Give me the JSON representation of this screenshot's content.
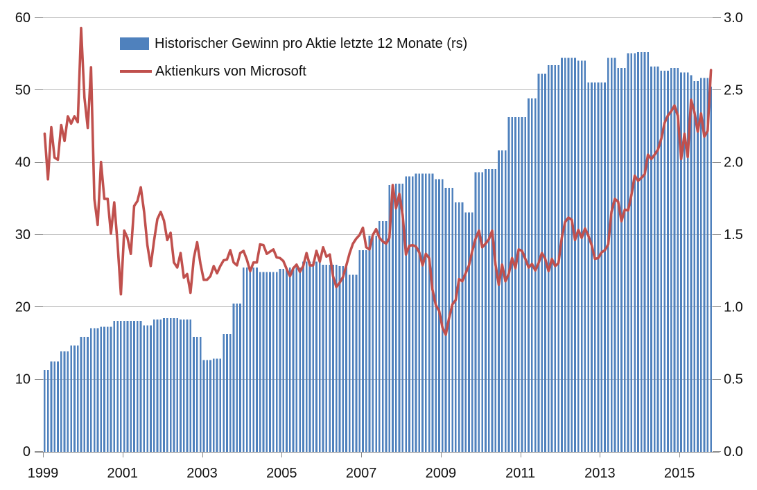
{
  "chart_data": {
    "type": "bar+line combo",
    "title": "",
    "frequency": "monthly",
    "start_month": "1999-01",
    "end_month": "2015-10",
    "x_ticks": {
      "labels": [
        "1999",
        "2001",
        "2003",
        "2005",
        "2007",
        "2009",
        "2011",
        "2013",
        "2015"
      ],
      "month_indices": [
        0,
        24,
        48,
        72,
        96,
        120,
        144,
        168,
        192
      ]
    },
    "left_axis": {
      "ticks": [
        "0",
        "10",
        "20",
        "30",
        "40",
        "50",
        "60"
      ],
      "values": [
        0,
        10,
        20,
        30,
        40,
        50,
        60
      ],
      "range": [
        0,
        60
      ]
    },
    "right_axis": {
      "ticks": [
        "0.0",
        "0.5",
        "1.0",
        "1.5",
        "2.0",
        "2.5",
        "3.0"
      ],
      "values": [
        0,
        0.5,
        1,
        1.5,
        2,
        2.5,
        3
      ],
      "range": [
        0,
        3
      ]
    },
    "grid": true,
    "legend_position": "top-left-inside",
    "series": [
      {
        "name": "Historischer Gewinn pro Aktie letzte 12 Monate (rs)",
        "type": "bar",
        "axis": "right",
        "color": "#4F81BD",
        "values": [
          0.56,
          0.56,
          0.62,
          0.62,
          0.62,
          0.69,
          0.69,
          0.69,
          0.73,
          0.73,
          0.73,
          0.79,
          0.79,
          0.79,
          0.85,
          0.85,
          0.85,
          0.86,
          0.86,
          0.86,
          0.86,
          0.9,
          0.9,
          0.9,
          0.9,
          0.9,
          0.9,
          0.9,
          0.9,
          0.9,
          0.87,
          0.87,
          0.87,
          0.91,
          0.91,
          0.91,
          0.92,
          0.92,
          0.92,
          0.92,
          0.92,
          0.91,
          0.91,
          0.91,
          0.91,
          0.79,
          0.79,
          0.79,
          0.63,
          0.63,
          0.63,
          0.64,
          0.64,
          0.64,
          0.81,
          0.81,
          0.81,
          1.02,
          1.02,
          1.02,
          1.27,
          1.27,
          1.27,
          1.27,
          1.27,
          1.24,
          1.24,
          1.24,
          1.24,
          1.24,
          1.24,
          1.26,
          1.26,
          1.26,
          1.27,
          1.27,
          1.27,
          1.27,
          1.31,
          1.31,
          1.31,
          1.31,
          1.31,
          1.31,
          1.29,
          1.29,
          1.29,
          1.29,
          1.29,
          1.28,
          1.28,
          1.28,
          1.22,
          1.22,
          1.22,
          1.39,
          1.39,
          1.39,
          1.49,
          1.49,
          1.49,
          1.59,
          1.59,
          1.59,
          1.84,
          1.84,
          1.85,
          1.85,
          1.85,
          1.9,
          1.9,
          1.9,
          1.92,
          1.92,
          1.92,
          1.92,
          1.92,
          1.92,
          1.88,
          1.88,
          1.88,
          1.82,
          1.82,
          1.82,
          1.72,
          1.72,
          1.72,
          1.65,
          1.65,
          1.65,
          1.93,
          1.93,
          1.93,
          1.95,
          1.95,
          1.95,
          1.95,
          2.08,
          2.08,
          2.08,
          2.31,
          2.31,
          2.31,
          2.31,
          2.31,
          2.31,
          2.44,
          2.44,
          2.44,
          2.61,
          2.61,
          2.61,
          2.67,
          2.67,
          2.67,
          2.67,
          2.72,
          2.72,
          2.72,
          2.72,
          2.72,
          2.7,
          2.7,
          2.7,
          2.55,
          2.55,
          2.55,
          2.55,
          2.55,
          2.55,
          2.72,
          2.72,
          2.72,
          2.65,
          2.65,
          2.65,
          2.75,
          2.75,
          2.75,
          2.76,
          2.76,
          2.76,
          2.76,
          2.66,
          2.66,
          2.66,
          2.63,
          2.63,
          2.63,
          2.65,
          2.65,
          2.65,
          2.62,
          2.62,
          2.62,
          2.6,
          2.56,
          2.56,
          2.58,
          2.58,
          2.58,
          2.52
        ]
      },
      {
        "name": "Aktienkurs von Microsoft",
        "type": "line",
        "axis": "left",
        "color": "#C0504D",
        "values": [
          43.9,
          37.6,
          44.8,
          40.6,
          40.3,
          45.1,
          42.9,
          46.3,
          45.3,
          46.3,
          45.5,
          58.5,
          48.9,
          44.7,
          53.1,
          34.9,
          31.3,
          40.0,
          34.9,
          34.9,
          30.1,
          34.4,
          28.7,
          21.7,
          30.5,
          29.5,
          27.3,
          33.9,
          34.6,
          36.5,
          33.1,
          28.5,
          25.6,
          29.1,
          32.1,
          33.1,
          31.9,
          29.2,
          30.2,
          26.1,
          25.4,
          27.4,
          24.0,
          24.5,
          21.9,
          26.7,
          28.9,
          25.9,
          23.7,
          23.7,
          24.2,
          25.6,
          24.6,
          25.6,
          26.4,
          26.5,
          27.8,
          26.1,
          25.7,
          27.4,
          27.7,
          26.5,
          24.9,
          26.1,
          26.1,
          28.6,
          28.5,
          27.3,
          27.6,
          27.9,
          26.8,
          26.7,
          26.3,
          25.2,
          24.2,
          25.3,
          25.8,
          24.8,
          25.6,
          27.4,
          25.7,
          25.7,
          27.7,
          26.2,
          28.2,
          26.9,
          27.2,
          24.2,
          22.7,
          23.3,
          24.1,
          25.7,
          27.4,
          28.7,
          29.4,
          29.9,
          30.9,
          28.2,
          27.9,
          29.9,
          30.7,
          29.5,
          29.0,
          28.7,
          29.5,
          36.8,
          33.6,
          35.6,
          32.6,
          27.2,
          28.4,
          28.5,
          28.3,
          27.5,
          25.7,
          27.3,
          26.7,
          22.3,
          20.2,
          19.4,
          17.1,
          16.1,
          18.4,
          20.3,
          20.9,
          23.8,
          23.5,
          24.6,
          25.7,
          27.7,
          29.4,
          30.5,
          28.2,
          28.7,
          29.3,
          30.5,
          25.8,
          23.0,
          25.8,
          23.5,
          24.5,
          26.7,
          25.3,
          27.9,
          27.7,
          26.6,
          25.4,
          25.9,
          25.0,
          26.0,
          27.4,
          26.6,
          24.9,
          26.6,
          25.6,
          26.0,
          29.5,
          31.7,
          32.3,
          32.0,
          29.2,
          30.6,
          29.5,
          30.8,
          29.8,
          28.5,
          26.6,
          26.7,
          27.5,
          27.8,
          28.6,
          33.1,
          34.9,
          34.5,
          31.8,
          33.4,
          33.3,
          35.4,
          38.1,
          37.4,
          37.8,
          38.3,
          41.0,
          40.4,
          41.0,
          41.7,
          43.2,
          45.4,
          46.4,
          47.0,
          47.8,
          46.4,
          40.4,
          43.9,
          40.7,
          48.6,
          46.9,
          44.2,
          46.7,
          43.5,
          44.3,
          52.7
        ]
      }
    ]
  },
  "colors": {
    "bar": "#4F81BD",
    "line": "#C0504D",
    "gridline": "#BFBFBF",
    "axis": "#8C8C8C",
    "text": "#111111",
    "background": "#FFFFFF"
  }
}
